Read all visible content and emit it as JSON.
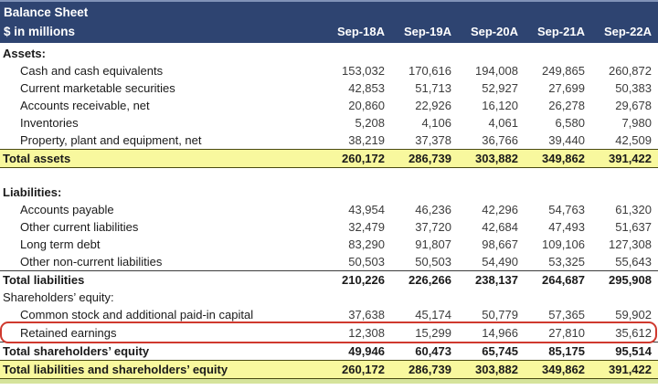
{
  "header": {
    "title": "Balance Sheet",
    "subtitle": "$ in millions",
    "columns": [
      "Sep-18A",
      "Sep-19A",
      "Sep-20A",
      "Sep-21A",
      "Sep-22A"
    ]
  },
  "colors": {
    "header_navy": "#2e4471",
    "header_border_light": "#8193b8",
    "highlight_yellow": "#f8f89e",
    "annotation_red": "#cf392e",
    "bottom_strip_green": "#d5e39b",
    "text_primary": "#1a1a1a"
  },
  "table": {
    "rows": [
      {
        "label": "Assets:",
        "type": "section",
        "values": null
      },
      {
        "label": "Cash and cash equivalents",
        "type": "detail",
        "values": [
          "153,032",
          "170,616",
          "194,008",
          "249,865",
          "260,872"
        ]
      },
      {
        "label": "Current marketable securities",
        "type": "detail",
        "values": [
          "42,853",
          "51,713",
          "52,927",
          "27,699",
          "50,383"
        ]
      },
      {
        "label": "Accounts receivable, net",
        "type": "detail",
        "values": [
          "20,860",
          "22,926",
          "16,120",
          "26,278",
          "29,678"
        ]
      },
      {
        "label": "Inventories",
        "type": "detail",
        "values": [
          "5,208",
          "4,106",
          "4,061",
          "6,580",
          "7,980"
        ]
      },
      {
        "label": "Property, plant and equipment, net",
        "type": "detail",
        "values": [
          "38,219",
          "37,378",
          "36,766",
          "39,440",
          "42,509"
        ]
      },
      {
        "label": "Total assets",
        "type": "total-highlight",
        "values": [
          "260,172",
          "286,739",
          "303,882",
          "349,862",
          "391,422"
        ]
      },
      {
        "label": "",
        "type": "spacer",
        "values": null
      },
      {
        "label": "Liabilities:",
        "type": "section",
        "values": null
      },
      {
        "label": "Accounts payable",
        "type": "detail",
        "values": [
          "43,954",
          "46,236",
          "42,296",
          "54,763",
          "61,320"
        ]
      },
      {
        "label": "Other current liabilities",
        "type": "detail",
        "values": [
          "32,479",
          "37,720",
          "42,684",
          "47,493",
          "51,637"
        ]
      },
      {
        "label": "Long term debt",
        "type": "detail",
        "values": [
          "83,290",
          "91,807",
          "98,667",
          "109,106",
          "127,308"
        ]
      },
      {
        "label": "Other non-current liabilities",
        "type": "detail",
        "values": [
          "50,503",
          "50,503",
          "54,490",
          "53,325",
          "55,643"
        ]
      },
      {
        "label": "Total liabilities",
        "type": "total",
        "values": [
          "210,226",
          "226,266",
          "238,137",
          "264,687",
          "295,908"
        ]
      },
      {
        "label": "Shareholders’ equity:",
        "type": "section-plain",
        "values": null
      },
      {
        "label": "Common stock and additional paid-in capital",
        "type": "detail",
        "values": [
          "37,638",
          "45,174",
          "50,779",
          "57,365",
          "59,902"
        ]
      },
      {
        "label": "Retained earnings",
        "type": "detail-boxed",
        "values": [
          "12,308",
          "15,299",
          "14,966",
          "27,810",
          "35,612"
        ]
      },
      {
        "label": "Total shareholders’ equity",
        "type": "total",
        "values": [
          "49,946",
          "60,473",
          "65,745",
          "85,175",
          "95,514"
        ]
      },
      {
        "label": "Total liabilities and shareholders’ equity",
        "type": "total-highlight",
        "values": [
          "260,172",
          "286,739",
          "303,882",
          "349,862",
          "391,422"
        ]
      }
    ]
  },
  "annotation": {
    "highlighted_row": "Retained earnings"
  }
}
